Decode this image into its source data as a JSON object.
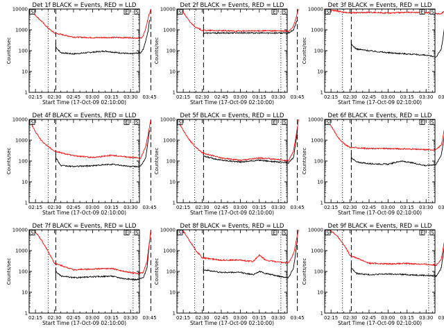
{
  "figure": {
    "xlabel_prefix": "Start Time (",
    "start_time": "17-Oct-09 02:10:00",
    "xlabel_suffix": ")",
    "ylabel": "Counts/sec",
    "x_ticks": [
      "02:15",
      "02:30",
      "02:45",
      "03:00",
      "03:15",
      "03:30",
      "03:45"
    ],
    "y_ticks": [
      "1",
      "10",
      "100",
      "1000",
      "10000"
    ],
    "corner_markers": [
      "S",
      "E",
      "S"
    ],
    "colors": {
      "events": "#000000",
      "lld": "#ff0000",
      "axes": "#000000",
      "background": "#ffffff"
    }
  },
  "chart_data": [
    {
      "type": "line",
      "title": "Det 1f BLACK = Events, RED = LLD",
      "ylim": [
        1,
        10000
      ],
      "yscale": "log",
      "x_range": [
        "02:10",
        "03:47"
      ],
      "series": [
        {
          "name": "Events",
          "color": "#000000",
          "x": [
            "02:31",
            "02:35",
            "02:45",
            "03:00",
            "03:10",
            "03:20",
            "03:30",
            "03:38",
            "03:40",
            "03:42",
            "03:44",
            "03:45"
          ],
          "values": [
            150,
            80,
            70,
            85,
            95,
            80,
            70,
            80,
            120,
            300,
            1000,
            3000
          ]
        },
        {
          "name": "LLD",
          "color": "#ff0000",
          "x": [
            "02:10",
            "02:15",
            "02:20",
            "02:25",
            "02:30",
            "02:45",
            "03:00",
            "03:15",
            "03:30",
            "03:38",
            "03:40",
            "03:42",
            "03:44",
            "03:46"
          ],
          "values": [
            10000,
            5000,
            2500,
            1200,
            700,
            450,
            420,
            430,
            420,
            400,
            500,
            1200,
            4000,
            10000
          ]
        }
      ],
      "reference_lines": [
        {
          "style": "dotted",
          "x": "02:25"
        },
        {
          "style": "dashed",
          "x": "02:31"
        },
        {
          "style": "dotted",
          "x": "03:32"
        },
        {
          "style": "dashed",
          "x": "03:46"
        }
      ]
    },
    {
      "type": "line",
      "title": "Det 2f BLACK = Events, RED = LLD",
      "ylim": [
        1,
        10000
      ],
      "yscale": "log",
      "x_range": [
        "02:10",
        "03:47"
      ],
      "series": [
        {
          "name": "Events",
          "color": "#000000",
          "x": [
            "02:31",
            "02:45",
            "03:00",
            "03:15",
            "03:30",
            "03:38",
            "03:42",
            "03:45"
          ],
          "values": [
            700,
            700,
            720,
            700,
            710,
            700,
            1000,
            3000
          ]
        },
        {
          "name": "LLD",
          "color": "#ff0000",
          "x": [
            "02:10",
            "02:15",
            "02:20",
            "02:25",
            "02:30",
            "02:45",
            "03:00",
            "03:15",
            "03:30",
            "03:38",
            "03:42",
            "03:46"
          ],
          "values": [
            10000,
            7000,
            2500,
            1300,
            950,
            900,
            880,
            900,
            890,
            850,
            1500,
            10000
          ]
        }
      ],
      "reference_lines": [
        {
          "style": "dotted",
          "x": "02:24"
        },
        {
          "style": "dashed",
          "x": "02:31"
        },
        {
          "style": "dotted",
          "x": "03:32"
        },
        {
          "style": "dashed",
          "x": "03:45"
        }
      ]
    },
    {
      "type": "line",
      "title": "Det 3f BLACK = Events, RED = LLD",
      "ylim": [
        1,
        10000
      ],
      "yscale": "log",
      "x_range": [
        "02:10",
        "03:47"
      ],
      "series": [
        {
          "name": "Events",
          "color": "#000000",
          "x": [
            "02:31",
            "02:35",
            "02:45",
            "03:00",
            "03:15",
            "03:30",
            "03:38",
            "03:42",
            "03:45"
          ],
          "values": [
            200,
            120,
            100,
            80,
            70,
            60,
            50,
            120,
            2000
          ]
        },
        {
          "name": "LLD",
          "color": "#ff0000",
          "x": [
            "02:10",
            "02:15",
            "02:20",
            "02:25",
            "02:30",
            "02:45",
            "03:00",
            "03:15",
            "03:30",
            "03:38",
            "03:42",
            "03:46"
          ],
          "values": [
            10000,
            9000,
            8000,
            7000,
            6500,
            7000,
            6500,
            6800,
            6800,
            6000,
            6000,
            10000
          ]
        }
      ],
      "reference_lines": [
        {
          "style": "dotted",
          "x": "02:24"
        },
        {
          "style": "dashed",
          "x": "02:31"
        },
        {
          "style": "dotted",
          "x": "03:32"
        },
        {
          "style": "dashed",
          "x": "03:45"
        }
      ]
    },
    {
      "type": "line",
      "title": "Det 4f BLACK = Events, RED = LLD",
      "ylim": [
        1,
        10000
      ],
      "yscale": "log",
      "x_range": [
        "02:10",
        "03:47"
      ],
      "series": [
        {
          "name": "Events",
          "color": "#000000",
          "x": [
            "02:31",
            "02:35",
            "02:45",
            "03:00",
            "03:15",
            "03:30",
            "03:38",
            "03:42",
            "03:45"
          ],
          "values": [
            150,
            60,
            55,
            60,
            70,
            55,
            55,
            150,
            3000
          ]
        },
        {
          "name": "LLD",
          "color": "#ff0000",
          "x": [
            "02:10",
            "02:15",
            "02:20",
            "02:25",
            "02:30",
            "02:45",
            "03:00",
            "03:15",
            "03:30",
            "03:38",
            "03:42",
            "03:46"
          ],
          "values": [
            10000,
            2500,
            900,
            500,
            300,
            180,
            150,
            190,
            150,
            140,
            500,
            10000
          ]
        }
      ],
      "reference_lines": [
        {
          "style": "dotted",
          "x": "02:25"
        },
        {
          "style": "dashed",
          "x": "02:31"
        },
        {
          "style": "dotted",
          "x": "03:32"
        },
        {
          "style": "dashed",
          "x": "03:46"
        }
      ]
    },
    {
      "type": "line",
      "title": "Det 5f BLACK = Events, RED = LLD",
      "ylim": [
        1,
        10000
      ],
      "yscale": "log",
      "x_range": [
        "02:10",
        "03:47"
      ],
      "series": [
        {
          "name": "Events",
          "color": "#000000",
          "x": [
            "02:31",
            "02:45",
            "03:00",
            "03:15",
            "03:30",
            "03:38",
            "03:42",
            "03:45"
          ],
          "values": [
            170,
            110,
            90,
            110,
            90,
            80,
            150,
            2500
          ]
        },
        {
          "name": "LLD",
          "color": "#ff0000",
          "x": [
            "02:10",
            "02:15",
            "02:20",
            "02:25",
            "02:30",
            "02:45",
            "03:00",
            "03:15",
            "03:30",
            "03:38",
            "03:42",
            "03:46"
          ],
          "values": [
            10000,
            3000,
            1000,
            450,
            250,
            140,
            110,
            140,
            120,
            100,
            300,
            10000
          ]
        }
      ],
      "reference_lines": [
        {
          "style": "dotted",
          "x": "02:24"
        },
        {
          "style": "dashed",
          "x": "02:31"
        },
        {
          "style": "dotted",
          "x": "03:32"
        },
        {
          "style": "dashed",
          "x": "03:45"
        }
      ]
    },
    {
      "type": "line",
      "title": "Det 6f BLACK = Events, RED = LLD",
      "ylim": [
        1,
        10000
      ],
      "yscale": "log",
      "x_range": [
        "02:10",
        "03:47"
      ],
      "series": [
        {
          "name": "Events",
          "color": "#000000",
          "x": [
            "02:31",
            "02:35",
            "02:45",
            "03:00",
            "03:10",
            "03:20",
            "03:30",
            "03:38",
            "03:42",
            "03:45"
          ],
          "values": [
            150,
            90,
            75,
            70,
            100,
            80,
            60,
            70,
            200,
            3000
          ]
        },
        {
          "name": "LLD",
          "color": "#ff0000",
          "x": [
            "02:10",
            "02:15",
            "02:20",
            "02:25",
            "02:30",
            "02:45",
            "03:00",
            "03:15",
            "03:30",
            "03:38",
            "03:42",
            "03:46"
          ],
          "values": [
            10000,
            5000,
            1500,
            700,
            450,
            400,
            400,
            380,
            350,
            350,
            600,
            10000
          ]
        }
      ],
      "reference_lines": [
        {
          "style": "dotted",
          "x": "02:24"
        },
        {
          "style": "dashed",
          "x": "02:31"
        },
        {
          "style": "dotted",
          "x": "03:32"
        },
        {
          "style": "dashed",
          "x": "03:45"
        }
      ]
    },
    {
      "type": "line",
      "title": "Det 7f BLACK = Events, RED = LLD",
      "ylim": [
        1,
        10000
      ],
      "yscale": "log",
      "x_range": [
        "02:10",
        "03:47"
      ],
      "series": [
        {
          "name": "Events",
          "color": "#000000",
          "x": [
            "02:31",
            "02:35",
            "02:45",
            "03:00",
            "03:15",
            "03:25",
            "03:35",
            "03:40",
            "03:43",
            "03:45"
          ],
          "values": [
            100,
            60,
            50,
            55,
            60,
            45,
            40,
            50,
            150,
            3000
          ]
        },
        {
          "name": "LLD",
          "color": "#ff0000",
          "x": [
            "02:10",
            "02:15",
            "02:20",
            "02:25",
            "02:30",
            "02:45",
            "03:00",
            "03:15",
            "03:25",
            "03:35",
            "03:40",
            "03:43",
            "03:46"
          ],
          "values": [
            10000,
            8000,
            3000,
            900,
            250,
            120,
            130,
            140,
            100,
            80,
            90,
            300,
            10000
          ]
        }
      ],
      "reference_lines": [
        {
          "style": "dotted",
          "x": "02:25"
        },
        {
          "style": "dashed",
          "x": "02:31"
        },
        {
          "style": "dotted",
          "x": "03:32"
        },
        {
          "style": "dashed",
          "x": "03:46"
        }
      ]
    },
    {
      "type": "line",
      "title": "Det 8f BLACK = Events, RED = LLD",
      "ylim": [
        1,
        10000
      ],
      "yscale": "log",
      "x_range": [
        "02:10",
        "03:47"
      ],
      "series": [
        {
          "name": "Events",
          "color": "#000000",
          "x": [
            "02:31",
            "02:45",
            "03:00",
            "03:10",
            "03:15",
            "03:20",
            "03:30",
            "03:38",
            "03:42",
            "03:45"
          ],
          "values": [
            120,
            90,
            90,
            70,
            100,
            80,
            60,
            50,
            150,
            3000
          ]
        },
        {
          "name": "LLD",
          "color": "#ff0000",
          "x": [
            "02:10",
            "02:15",
            "02:20",
            "02:25",
            "02:30",
            "02:45",
            "03:00",
            "03:10",
            "03:15",
            "03:20",
            "03:30",
            "03:38",
            "03:42",
            "03:46"
          ],
          "values": [
            10000,
            9000,
            3000,
            1000,
            450,
            350,
            350,
            300,
            600,
            350,
            280,
            250,
            700,
            10000
          ]
        }
      ],
      "reference_lines": [
        {
          "style": "dotted",
          "x": "02:24"
        },
        {
          "style": "dashed",
          "x": "02:31"
        },
        {
          "style": "dotted",
          "x": "03:32"
        },
        {
          "style": "dashed",
          "x": "03:45"
        }
      ]
    },
    {
      "type": "line",
      "title": "Det 9f BLACK = Events, RED = LLD",
      "ylim": [
        1,
        10000
      ],
      "yscale": "log",
      "x_range": [
        "02:10",
        "03:47"
      ],
      "series": [
        {
          "name": "Events",
          "color": "#000000",
          "x": [
            "02:31",
            "02:35",
            "02:45",
            "03:00",
            "03:15",
            "03:30",
            "03:38",
            "03:42",
            "03:45"
          ],
          "values": [
            150,
            80,
            70,
            75,
            70,
            65,
            60,
            150,
            3000
          ]
        },
        {
          "name": "LLD",
          "color": "#ff0000",
          "x": [
            "02:10",
            "02:15",
            "02:20",
            "02:25",
            "02:30",
            "02:45",
            "03:00",
            "03:15",
            "03:30",
            "03:38",
            "03:42",
            "03:46"
          ],
          "values": [
            10000,
            9000,
            5000,
            2000,
            600,
            250,
            230,
            240,
            220,
            200,
            400,
            10000
          ]
        }
      ],
      "reference_lines": [
        {
          "style": "dotted",
          "x": "02:24"
        },
        {
          "style": "dashed",
          "x": "02:31"
        },
        {
          "style": "dotted",
          "x": "03:32"
        },
        {
          "style": "dashed",
          "x": "03:45"
        }
      ]
    }
  ]
}
